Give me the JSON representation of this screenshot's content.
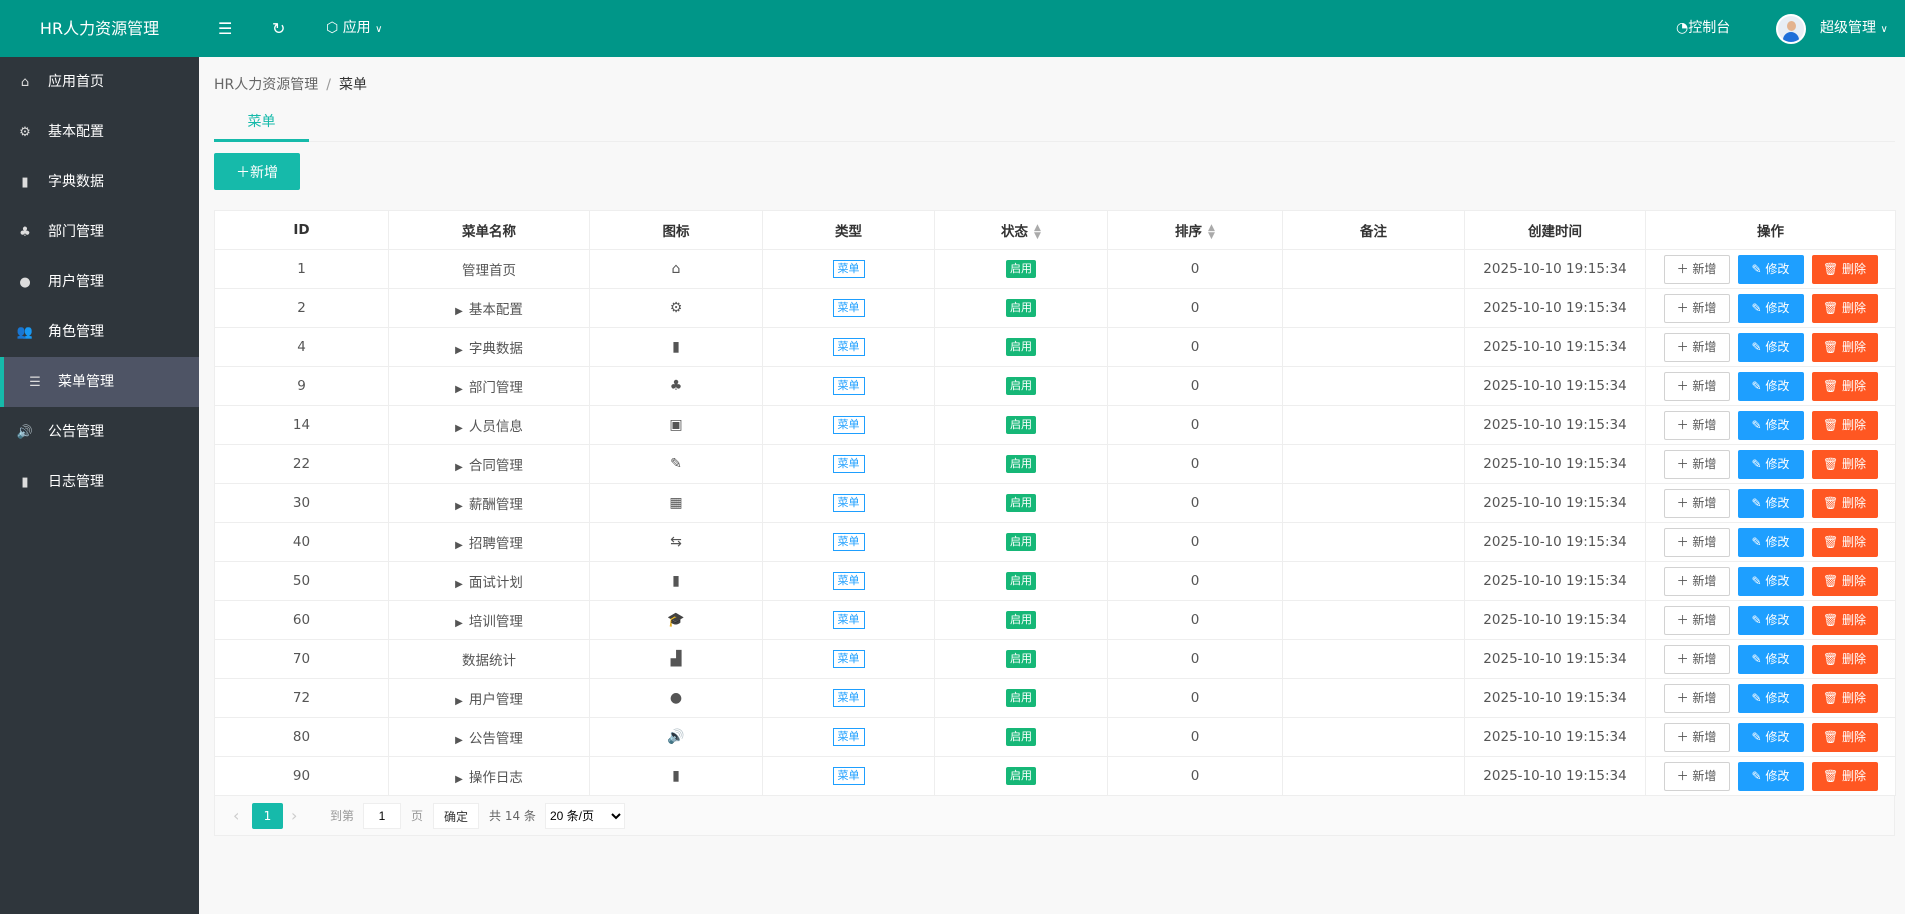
{
  "header": {
    "logo": "HR人力资源管理",
    "apps_label": "应用",
    "console_label": "控制台",
    "user_label": "超级管理"
  },
  "sidebar": {
    "items": [
      {
        "label": "应用首页",
        "icon": "home-icon",
        "glyph": "⌂"
      },
      {
        "label": "基本配置",
        "icon": "gear-icon",
        "glyph": "⚙"
      },
      {
        "label": "字典数据",
        "icon": "book-icon",
        "glyph": "▮"
      },
      {
        "label": "部门管理",
        "icon": "sitemap-icon",
        "glyph": "♣"
      },
      {
        "label": "用户管理",
        "icon": "user-icon",
        "glyph": "●"
      },
      {
        "label": "角色管理",
        "icon": "users-icon",
        "glyph": "👥"
      },
      {
        "label": "菜单管理",
        "icon": "list-icon",
        "glyph": "☰",
        "active": true
      },
      {
        "label": "公告管理",
        "icon": "bullhorn-icon",
        "glyph": "🔊"
      },
      {
        "label": "日志管理",
        "icon": "clipboard-icon",
        "glyph": "▮"
      }
    ]
  },
  "breadcrumb": {
    "root": "HR人力资源管理",
    "sep": "/",
    "current": "菜单"
  },
  "tab": "菜单",
  "add_button": "新增",
  "table": {
    "columns": [
      "ID",
      "菜单名称",
      "图标",
      "类型",
      "状态",
      "排序",
      "备注",
      "创建时间",
      "操作"
    ],
    "rows": [
      {
        "id": "1",
        "name": "管理首页",
        "expand": false,
        "icon": "home-icon",
        "glyph": "⌂",
        "type": "菜单",
        "status": "启用",
        "sort": "0",
        "note": "",
        "created": "2025-10-10 19:15:34"
      },
      {
        "id": "2",
        "name": "基本配置",
        "expand": true,
        "icon": "gear-icon",
        "glyph": "⚙",
        "type": "菜单",
        "status": "启用",
        "sort": "0",
        "note": "",
        "created": "2025-10-10 19:15:34"
      },
      {
        "id": "4",
        "name": "字典数据",
        "expand": true,
        "icon": "book-icon",
        "glyph": "▮",
        "type": "菜单",
        "status": "启用",
        "sort": "0",
        "note": "",
        "created": "2025-10-10 19:15:34"
      },
      {
        "id": "9",
        "name": "部门管理",
        "expand": true,
        "icon": "sitemap-icon",
        "glyph": "♣",
        "type": "菜单",
        "status": "启用",
        "sort": "0",
        "note": "",
        "created": "2025-10-10 19:15:34"
      },
      {
        "id": "14",
        "name": "人员信息",
        "expand": true,
        "icon": "id-card-icon",
        "glyph": "▣",
        "type": "菜单",
        "status": "启用",
        "sort": "0",
        "note": "",
        "created": "2025-10-10 19:15:34"
      },
      {
        "id": "22",
        "name": "合同管理",
        "expand": true,
        "icon": "file-signature-icon",
        "glyph": "✎",
        "type": "菜单",
        "status": "启用",
        "sort": "0",
        "note": "",
        "created": "2025-10-10 19:15:34"
      },
      {
        "id": "30",
        "name": "薪酬管理",
        "expand": true,
        "icon": "money-icon",
        "glyph": "▦",
        "type": "菜单",
        "status": "启用",
        "sort": "0",
        "note": "",
        "created": "2025-10-10 19:15:34"
      },
      {
        "id": "40",
        "name": "招聘管理",
        "expand": true,
        "icon": "handshake-icon",
        "glyph": "⇆",
        "type": "菜单",
        "status": "启用",
        "sort": "0",
        "note": "",
        "created": "2025-10-10 19:15:34"
      },
      {
        "id": "50",
        "name": "面试计划",
        "expand": true,
        "icon": "clipboard-question-icon",
        "glyph": "▮",
        "type": "菜单",
        "status": "启用",
        "sort": "0",
        "note": "",
        "created": "2025-10-10 19:15:34"
      },
      {
        "id": "60",
        "name": "培训管理",
        "expand": true,
        "icon": "graduation-cap-icon",
        "glyph": "🎓",
        "type": "菜单",
        "status": "启用",
        "sort": "0",
        "note": "",
        "created": "2025-10-10 19:15:34"
      },
      {
        "id": "70",
        "name": "数据统计",
        "expand": false,
        "icon": "chart-icon",
        "glyph": "▟",
        "type": "菜单",
        "status": "启用",
        "sort": "0",
        "note": "",
        "created": "2025-10-10 19:15:34"
      },
      {
        "id": "72",
        "name": "用户管理",
        "expand": true,
        "icon": "user-icon",
        "glyph": "●",
        "type": "菜单",
        "status": "启用",
        "sort": "0",
        "note": "",
        "created": "2025-10-10 19:15:34"
      },
      {
        "id": "80",
        "name": "公告管理",
        "expand": true,
        "icon": "bullhorn-icon",
        "glyph": "🔊",
        "type": "菜单",
        "status": "启用",
        "sort": "0",
        "note": "",
        "created": "2025-10-10 19:15:34"
      },
      {
        "id": "90",
        "name": "操作日志",
        "expand": true,
        "icon": "clipboard-icon",
        "glyph": "▮",
        "type": "菜单",
        "status": "启用",
        "sort": "0",
        "note": "",
        "created": "2025-10-10 19:15:34"
      }
    ],
    "actions": {
      "add": "新增",
      "edit": "修改",
      "delete": "删除"
    }
  },
  "pagination": {
    "current": "1",
    "goto_label": "到第",
    "page_input": "1",
    "page_unit": "页",
    "confirm": "确定",
    "total": "共 14 条",
    "page_size": "20 条/页"
  },
  "colors": {
    "header": "#009688",
    "sidebar": "#2f363c",
    "primary": "#16baaa",
    "edit": "#1e9fff",
    "delete": "#ff5722"
  }
}
